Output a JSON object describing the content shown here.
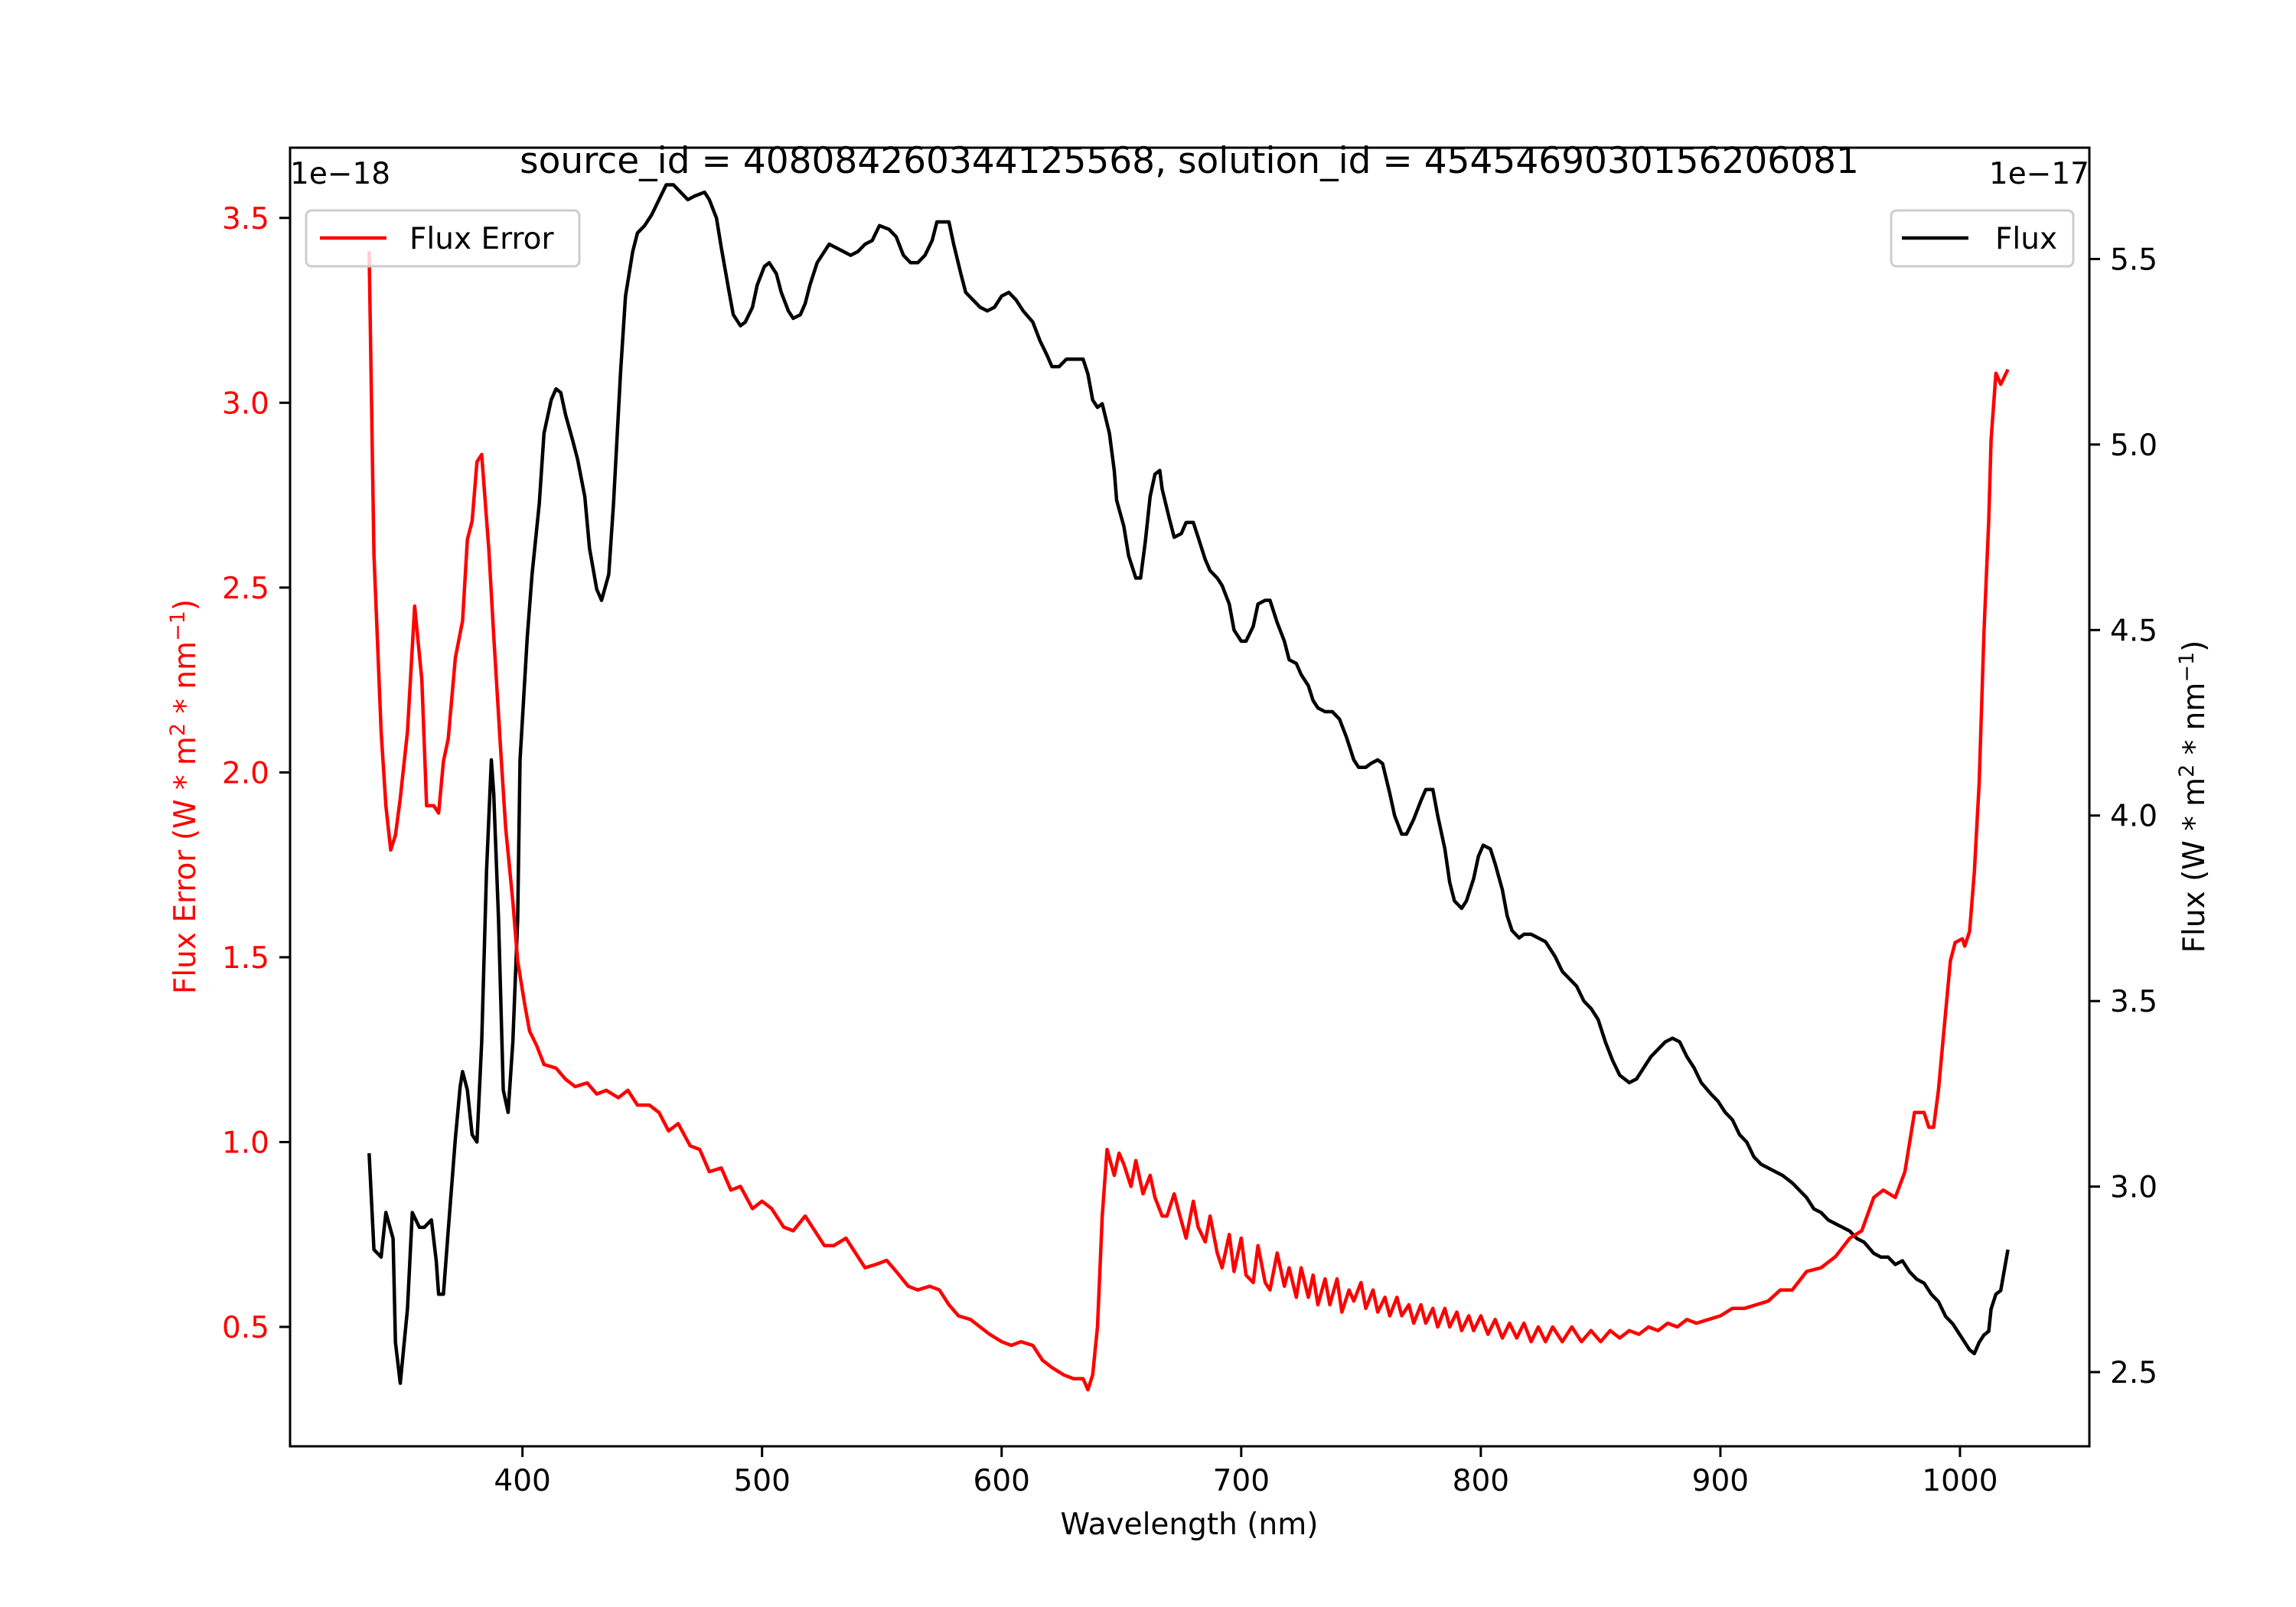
{
  "chart_data": {
    "type": "line",
    "title": "source_id = 408084260344125568, solution_id = 4545469030156206081",
    "xlabel": "Wavelength (nm)",
    "xlim": [
      303,
      1054
    ],
    "xticks": [
      400,
      500,
      600,
      700,
      800,
      900,
      1000
    ],
    "left_axis": {
      "label": {
        "pre": "Flux Error (W * m",
        "sup1": "2",
        "mid": " * nm",
        "sup2": "−1",
        "post": ")"
      },
      "offset_text": "1e−18",
      "ylim": [
        0.177,
        3.69
      ],
      "yticks": [
        0.5,
        1.0,
        1.5,
        2.0,
        2.5,
        3.0,
        3.5
      ],
      "ytick_labels": [
        "0.5",
        "1.0",
        "1.5",
        "2.0",
        "2.5",
        "3.0",
        "3.5"
      ],
      "color": "#ff0000"
    },
    "right_axis": {
      "label": {
        "pre": "Flux (W * m",
        "sup1": "2",
        "mid": " * nm",
        "sup2": "−1",
        "post": ")"
      },
      "offset_text": "1e−17",
      "ylim": [
        2.3,
        5.8
      ],
      "yticks": [
        2.5,
        3.0,
        3.5,
        4.0,
        4.5,
        5.0,
        5.5
      ],
      "ytick_labels": [
        "2.5",
        "3.0",
        "3.5",
        "4.0",
        "4.5",
        "5.0",
        "5.5"
      ],
      "color": "#000000"
    },
    "legend": {
      "left": "Flux Error",
      "right": "Flux",
      "left_placement": "upper-left",
      "right_placement": "upper-right"
    },
    "series": [
      {
        "name": "Flux Error",
        "axis": "left",
        "color": "#ff0000",
        "x": [
          336,
          338,
          341,
          343,
          345,
          347,
          349,
          352,
          355,
          358,
          360,
          363,
          365,
          367,
          369,
          372,
          375,
          377,
          379,
          381,
          383,
          386,
          388,
          391,
          393,
          396,
          398,
          401,
          403,
          406,
          409,
          414,
          418,
          422,
          427,
          431,
          435,
          440,
          444,
          448,
          453,
          457,
          461,
          465,
          470,
          474,
          478,
          483,
          487,
          491,
          496,
          500,
          504,
          509,
          513,
          518,
          522,
          526,
          530,
          535,
          539,
          543,
          548,
          552,
          556,
          561,
          565,
          570,
          574,
          578,
          582,
          587,
          591,
          595,
          600,
          604,
          608,
          613,
          617,
          621,
          626,
          630,
          634,
          636,
          638,
          640,
          642,
          644,
          647,
          649,
          651,
          654,
          656,
          659,
          662,
          664,
          667,
          669,
          672,
          674,
          677,
          680,
          682,
          685,
          687,
          690,
          692,
          695,
          697,
          700,
          702,
          705,
          707,
          710,
          712,
          715,
          718,
          720,
          723,
          725,
          728,
          730,
          732,
          735,
          737,
          740,
          742,
          745,
          747,
          750,
          752,
          755,
          757,
          760,
          762,
          765,
          767,
          770,
          772,
          775,
          777,
          780,
          782,
          785,
          787,
          790,
          792,
          795,
          797,
          800,
          803,
          806,
          809,
          812,
          815,
          818,
          821,
          824,
          827,
          830,
          834,
          838,
          842,
          846,
          850,
          854,
          858,
          862,
          866,
          870,
          874,
          878,
          882,
          886,
          890,
          895,
          900,
          905,
          910,
          915,
          920,
          925,
          930,
          936,
          942,
          948,
          954,
          959,
          964,
          968,
          973,
          977,
          981,
          985,
          987,
          989,
          991,
          993,
          996,
          998,
          1001,
          1002,
          1004,
          1006,
          1008,
          1010,
          1012,
          1013,
          1015,
          1017,
          1020
        ],
        "y": [
          3.41,
          2.59,
          2.11,
          1.91,
          1.79,
          1.83,
          1.93,
          2.11,
          2.45,
          2.25,
          1.91,
          1.91,
          1.89,
          2.03,
          2.09,
          2.31,
          2.41,
          2.63,
          2.68,
          2.84,
          2.86,
          2.6,
          2.37,
          2.05,
          1.85,
          1.65,
          1.49,
          1.37,
          1.3,
          1.26,
          1.21,
          1.2,
          1.17,
          1.15,
          1.16,
          1.13,
          1.14,
          1.12,
          1.14,
          1.1,
          1.1,
          1.08,
          1.03,
          1.05,
          0.99,
          0.98,
          0.92,
          0.93,
          0.87,
          0.88,
          0.82,
          0.84,
          0.82,
          0.77,
          0.76,
          0.8,
          0.76,
          0.72,
          0.72,
          0.74,
          0.7,
          0.66,
          0.67,
          0.68,
          0.65,
          0.61,
          0.6,
          0.61,
          0.6,
          0.56,
          0.53,
          0.52,
          0.5,
          0.48,
          0.46,
          0.45,
          0.46,
          0.45,
          0.41,
          0.39,
          0.37,
          0.36,
          0.36,
          0.33,
          0.37,
          0.5,
          0.8,
          0.98,
          0.91,
          0.97,
          0.94,
          0.88,
          0.95,
          0.86,
          0.91,
          0.85,
          0.8,
          0.8,
          0.86,
          0.81,
          0.74,
          0.84,
          0.77,
          0.73,
          0.8,
          0.7,
          0.66,
          0.75,
          0.65,
          0.74,
          0.64,
          0.62,
          0.72,
          0.62,
          0.6,
          0.7,
          0.61,
          0.66,
          0.58,
          0.66,
          0.58,
          0.64,
          0.56,
          0.63,
          0.56,
          0.63,
          0.54,
          0.6,
          0.57,
          0.62,
          0.55,
          0.6,
          0.54,
          0.58,
          0.53,
          0.58,
          0.53,
          0.56,
          0.51,
          0.56,
          0.51,
          0.55,
          0.5,
          0.55,
          0.5,
          0.54,
          0.49,
          0.53,
          0.49,
          0.53,
          0.48,
          0.52,
          0.47,
          0.51,
          0.47,
          0.51,
          0.46,
          0.5,
          0.46,
          0.5,
          0.46,
          0.5,
          0.46,
          0.49,
          0.46,
          0.49,
          0.47,
          0.49,
          0.48,
          0.5,
          0.49,
          0.51,
          0.5,
          0.52,
          0.51,
          0.52,
          0.53,
          0.55,
          0.55,
          0.56,
          0.57,
          0.6,
          0.6,
          0.65,
          0.66,
          0.69,
          0.74,
          0.76,
          0.85,
          0.87,
          0.85,
          0.92,
          1.08,
          1.08,
          1.04,
          1.04,
          1.14,
          1.28,
          1.49,
          1.54,
          1.55,
          1.53,
          1.57,
          1.73,
          1.97,
          2.38,
          2.68,
          2.9,
          3.08,
          3.05,
          3.09
        ]
      },
      {
        "name": "Flux",
        "axis": "right",
        "color": "#000000",
        "x": [
          336,
          338,
          341,
          343,
          346,
          347,
          349,
          352,
          354,
          357,
          359,
          362,
          364,
          365,
          367,
          369,
          372,
          374,
          375,
          377,
          379,
          381,
          383,
          385,
          387,
          388,
          390,
          392,
          394,
          396,
          398,
          399,
          402,
          404,
          407,
          409,
          412,
          414,
          416,
          418,
          421,
          423,
          426,
          428,
          431,
          433,
          436,
          438,
          441,
          443,
          446,
          448,
          451,
          454,
          457,
          460,
          463,
          466,
          469,
          472,
          476,
          478,
          481,
          483,
          486,
          488,
          491,
          493,
          496,
          498,
          501,
          503,
          506,
          508,
          511,
          513,
          516,
          518,
          520,
          523,
          526,
          528,
          531,
          534,
          537,
          540,
          543,
          546,
          549,
          553,
          556,
          559,
          562,
          565,
          568,
          571,
          573,
          576,
          578,
          580,
          583,
          585,
          588,
          591,
          594,
          597,
          600,
          603,
          606,
          609,
          613,
          616,
          619,
          621,
          624,
          627,
          630,
          634,
          636,
          638,
          640,
          642,
          645,
          647,
          648,
          651,
          653,
          656,
          658,
          660,
          662,
          664,
          666,
          667,
          670,
          672,
          675,
          677,
          680,
          682,
          685,
          687,
          690,
          692,
          695,
          697,
          700,
          702,
          705,
          707,
          710,
          712,
          715,
          718,
          720,
          723,
          725,
          728,
          730,
          732,
          735,
          738,
          741,
          744,
          747,
          749,
          752,
          754,
          757,
          759,
          762,
          764,
          767,
          769,
          772,
          775,
          777,
          780,
          782,
          785,
          787,
          789,
          792,
          794,
          797,
          799,
          801,
          804,
          806,
          809,
          811,
          813,
          816,
          818,
          821,
          824,
          827,
          831,
          834,
          837,
          840,
          843,
          846,
          849,
          852,
          855,
          858,
          862,
          865,
          868,
          871,
          874,
          877,
          880,
          883,
          886,
          889,
          892,
          896,
          899,
          902,
          905,
          908,
          911,
          914,
          917,
          920,
          923,
          926,
          930,
          933,
          936,
          939,
          942,
          945,
          948,
          951,
          954,
          957,
          960,
          964,
          967,
          970,
          973,
          976,
          979,
          982,
          985,
          988,
          991,
          994,
          997,
          1001,
          1002,
          1004,
          1006,
          1008,
          1010,
          1012,
          1013,
          1015,
          1017,
          1020
        ],
        "y": [
          3.09,
          2.83,
          2.81,
          2.93,
          2.86,
          2.58,
          2.47,
          2.67,
          2.93,
          2.89,
          2.89,
          2.91,
          2.8,
          2.71,
          2.71,
          2.88,
          3.13,
          3.27,
          3.31,
          3.26,
          3.14,
          3.12,
          3.39,
          3.85,
          4.15,
          4.06,
          3.72,
          3.26,
          3.2,
          3.39,
          3.72,
          4.15,
          4.48,
          4.65,
          4.84,
          5.03,
          5.12,
          5.15,
          5.14,
          5.08,
          5.01,
          4.96,
          4.86,
          4.72,
          4.61,
          4.58,
          4.65,
          4.84,
          5.2,
          5.4,
          5.52,
          5.57,
          5.59,
          5.62,
          5.66,
          5.7,
          5.7,
          5.68,
          5.66,
          5.67,
          5.68,
          5.66,
          5.61,
          5.53,
          5.42,
          5.35,
          5.32,
          5.33,
          5.37,
          5.43,
          5.48,
          5.49,
          5.46,
          5.41,
          5.36,
          5.34,
          5.35,
          5.38,
          5.43,
          5.49,
          5.52,
          5.54,
          5.53,
          5.52,
          5.51,
          5.52,
          5.54,
          5.55,
          5.59,
          5.58,
          5.56,
          5.51,
          5.49,
          5.49,
          5.51,
          5.55,
          5.6,
          5.6,
          5.6,
          5.54,
          5.46,
          5.41,
          5.39,
          5.37,
          5.36,
          5.37,
          5.4,
          5.41,
          5.39,
          5.36,
          5.33,
          5.28,
          5.24,
          5.21,
          5.21,
          5.23,
          5.23,
          5.23,
          5.19,
          5.12,
          5.1,
          5.11,
          5.03,
          4.93,
          4.85,
          4.78,
          4.7,
          4.64,
          4.64,
          4.74,
          4.86,
          4.92,
          4.93,
          4.88,
          4.8,
          4.75,
          4.76,
          4.79,
          4.79,
          4.75,
          4.69,
          4.66,
          4.64,
          4.62,
          4.57,
          4.5,
          4.47,
          4.47,
          4.51,
          4.57,
          4.58,
          4.58,
          4.52,
          4.47,
          4.42,
          4.41,
          4.38,
          4.35,
          4.31,
          4.29,
          4.28,
          4.28,
          4.26,
          4.21,
          4.15,
          4.13,
          4.13,
          4.14,
          4.15,
          4.14,
          4.06,
          4.0,
          3.95,
          3.95,
          3.99,
          4.04,
          4.07,
          4.07,
          4.0,
          3.91,
          3.82,
          3.77,
          3.75,
          3.77,
          3.83,
          3.89,
          3.92,
          3.91,
          3.87,
          3.8,
          3.73,
          3.69,
          3.67,
          3.68,
          3.68,
          3.67,
          3.66,
          3.62,
          3.58,
          3.56,
          3.54,
          3.5,
          3.48,
          3.45,
          3.39,
          3.34,
          3.3,
          3.28,
          3.29,
          3.32,
          3.35,
          3.37,
          3.39,
          3.4,
          3.39,
          3.35,
          3.32,
          3.28,
          3.25,
          3.23,
          3.2,
          3.18,
          3.14,
          3.12,
          3.08,
          3.06,
          3.05,
          3.04,
          3.03,
          3.01,
          2.99,
          2.97,
          2.94,
          2.93,
          2.91,
          2.9,
          2.89,
          2.88,
          2.86,
          2.85,
          2.82,
          2.81,
          2.81,
          2.79,
          2.8,
          2.77,
          2.75,
          2.74,
          2.71,
          2.69,
          2.65,
          2.63,
          2.59,
          2.58,
          2.56,
          2.55,
          2.58,
          2.6,
          2.61,
          2.67,
          2.71,
          2.72,
          2.83
        ]
      }
    ]
  }
}
